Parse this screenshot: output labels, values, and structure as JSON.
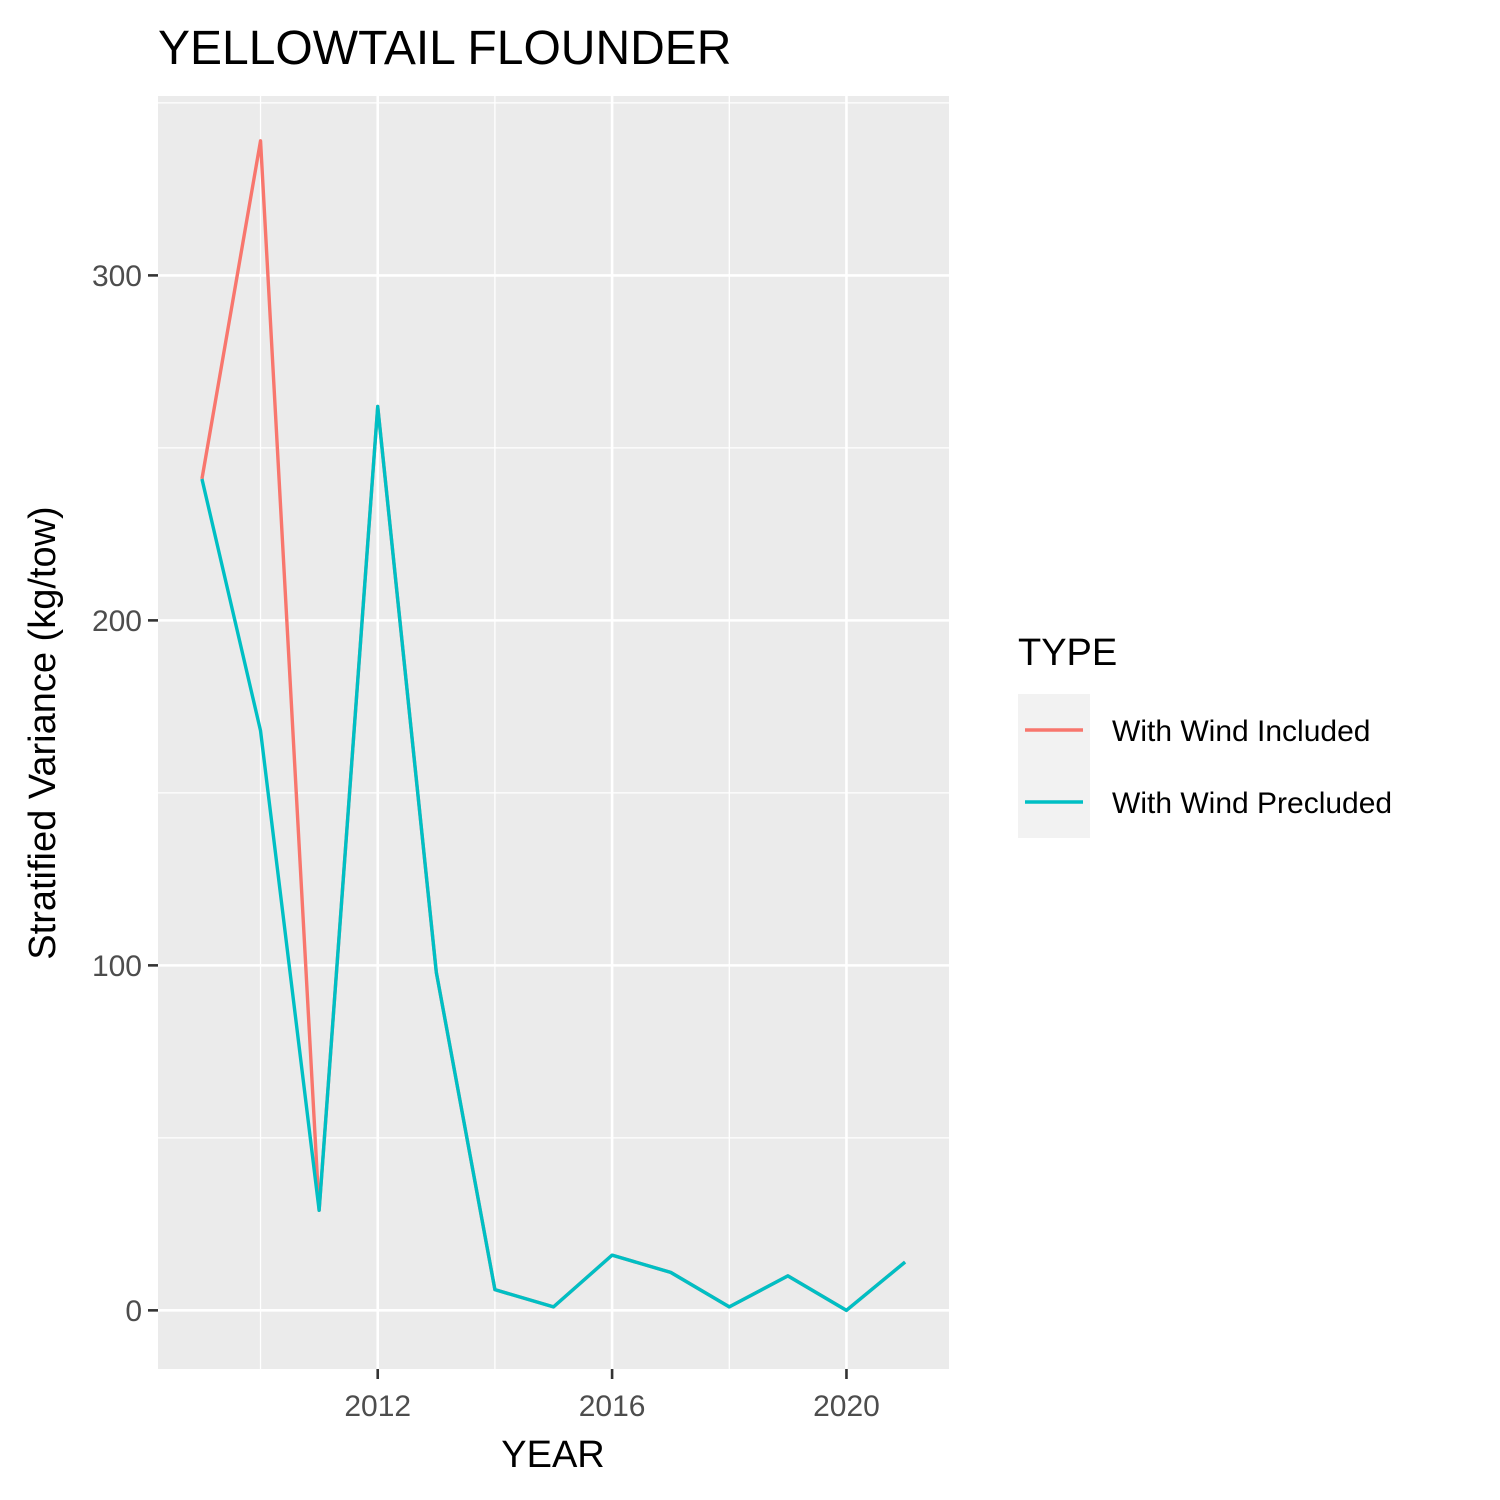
{
  "chart_data": {
    "type": "line",
    "title": "YELLOWTAIL FLOUNDER",
    "xlabel": "YEAR",
    "ylabel": "Stratified Variance (kg/tow)",
    "x": [
      2009,
      2010,
      2011,
      2012,
      2013,
      2014,
      2015,
      2016,
      2017,
      2018,
      2019,
      2020,
      2021
    ],
    "xlim": [
      2008.25,
      2021.75
    ],
    "ylim": [
      -17,
      352
    ],
    "x_ticks": [
      2012,
      2016,
      2020
    ],
    "x_tick_labels": [
      "2012",
      "2016",
      "2020"
    ],
    "y_ticks": [
      0,
      100,
      200,
      300
    ],
    "y_tick_labels": [
      "0",
      "100",
      "200",
      "300"
    ],
    "grid": true,
    "legend_title": "TYPE",
    "legend_position": "right",
    "series": [
      {
        "name": "With Wind Included",
        "color": "#F8766D",
        "values": [
          241,
          339,
          29,
          262,
          98,
          6,
          1,
          16,
          11,
          1,
          10,
          0,
          14
        ]
      },
      {
        "name": "With Wind Precluded",
        "color": "#00BFC4",
        "values": [
          241,
          168,
          29,
          262,
          98,
          6,
          1,
          16,
          11,
          1,
          10,
          0,
          14
        ]
      }
    ]
  }
}
